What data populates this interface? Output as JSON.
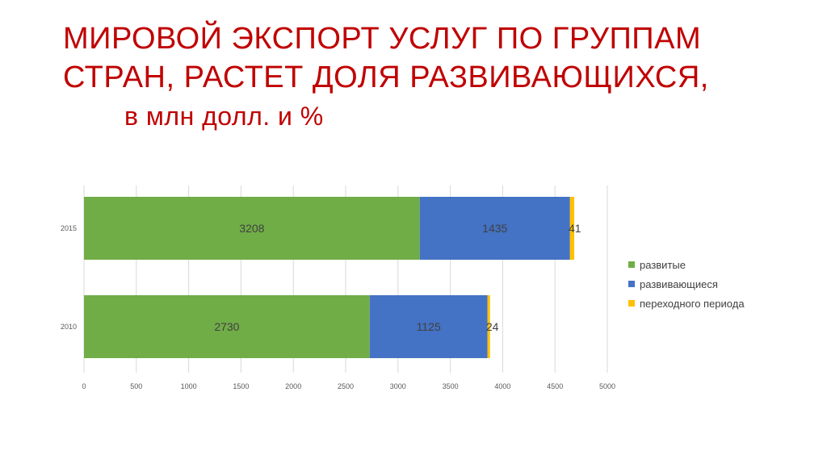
{
  "slide": {
    "title_line1": "МИРОВОЙ ЭКСПОРТ УСЛУГ ПО ГРУППАМ",
    "title_line2": "СТРАН, РАСТЕТ ДОЛЯ РАЗВИВАЮЩИХСЯ,",
    "title_line3": "в млн долл. и  %"
  },
  "chart_data": {
    "type": "bar",
    "orientation": "horizontal",
    "stacked": true,
    "categories": [
      "2015",
      "2010"
    ],
    "series": [
      {
        "name": "развитые",
        "color": "#70ad47",
        "values": [
          3208,
          2730
        ],
        "labels": [
          "3208",
          "2730"
        ]
      },
      {
        "name": "развивающиеся",
        "color": "#4472c4",
        "values": [
          1435,
          1125
        ],
        "labels": [
          "1435",
          "1125"
        ]
      },
      {
        "name": "переходного  периода",
        "color": "#ffc000",
        "values": [
          41,
          24
        ],
        "labels": [
          "41",
          "24"
        ]
      }
    ],
    "xlim": [
      0,
      5000
    ],
    "xticks": [
      "0",
      "500",
      "1000",
      "1500",
      "2000",
      "2500",
      "3000",
      "3500",
      "4000",
      "4500",
      "5000"
    ],
    "grid": true,
    "legend_position": "right"
  }
}
